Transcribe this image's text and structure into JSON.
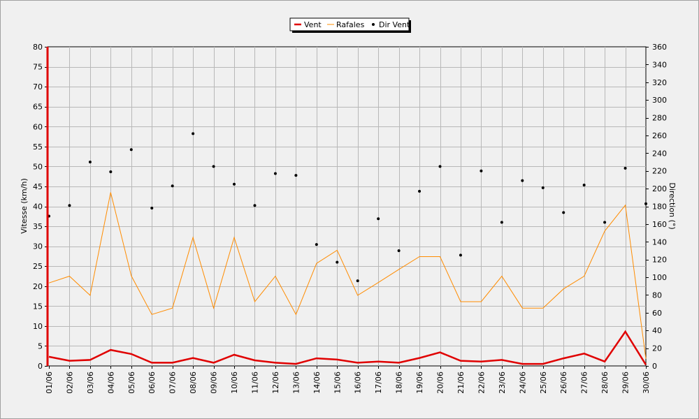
{
  "chart_data": {
    "type": "line",
    "categories": [
      "01/06",
      "02/06",
      "03/06",
      "04/06",
      "05/06",
      "06/06",
      "07/06",
      "08/06",
      "09/06",
      "10/06",
      "11/06",
      "12/06",
      "13/06",
      "14/06",
      "15/06",
      "16/06",
      "17/06",
      "18/06",
      "19/06",
      "20/06",
      "21/06",
      "22/06",
      "23/06",
      "24/06",
      "25/06",
      "26/06",
      "27/06",
      "28/06",
      "29/06",
      "30/06"
    ],
    "series": [
      {
        "name": "Vent",
        "axis": "left",
        "type": "line",
        "color": "#e00000",
        "values": [
          2.3,
          1.3,
          1.5,
          4.0,
          3.0,
          0.8,
          0.8,
          2.0,
          0.8,
          2.8,
          1.4,
          0.8,
          0.5,
          1.9,
          1.6,
          0.8,
          1.1,
          0.8,
          2.0,
          3.4,
          1.3,
          1.1,
          1.5,
          0.5,
          0.5,
          1.9,
          3.1,
          1.1,
          8.6,
          0.3
        ]
      },
      {
        "name": "Rafales",
        "axis": "left",
        "type": "line",
        "color": "#ff8c00",
        "values": [
          20.8,
          22.5,
          17.7,
          43.5,
          22.6,
          12.9,
          14.5,
          32.2,
          14.5,
          32.2,
          16.1,
          22.5,
          12.9,
          25.7,
          29.0,
          17.7,
          20.9,
          24.2,
          27.4,
          27.4,
          16.1,
          16.1,
          22.5,
          14.5,
          14.5,
          19.3,
          22.5,
          33.8,
          40.3,
          1.8
        ]
      },
      {
        "name": "Dir Vent",
        "axis": "right",
        "type": "scatter",
        "color": "#000000",
        "values": [
          169,
          181,
          230,
          219,
          244,
          178,
          203,
          262,
          225,
          205,
          181,
          217,
          215,
          137,
          117,
          96,
          166,
          130,
          197,
          225,
          125,
          220,
          162,
          209,
          201,
          173,
          204,
          162,
          223,
          183
        ]
      }
    ],
    "ylabel": "Vitesse (km/h)",
    "ylabel_right": "Direction (°)",
    "ylim": [
      0,
      80
    ],
    "yticks": [
      0,
      5,
      10,
      15,
      20,
      25,
      30,
      35,
      40,
      45,
      50,
      55,
      60,
      65,
      70,
      75,
      80
    ],
    "ylim_right": [
      0,
      360
    ],
    "yticks_right": [
      0,
      20,
      40,
      60,
      80,
      100,
      120,
      140,
      160,
      180,
      200,
      220,
      240,
      260,
      280,
      300,
      320,
      340,
      360
    ],
    "grid": true,
    "legend_position": "top-center"
  }
}
